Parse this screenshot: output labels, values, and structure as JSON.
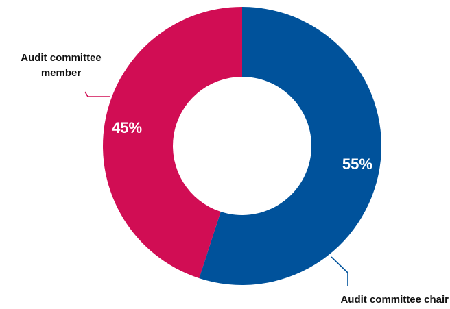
{
  "chart_data": {
    "type": "pie",
    "donut": true,
    "title": "",
    "slices": [
      {
        "label": "Audit committee chair",
        "value": 55,
        "value_label": "55%",
        "color": "#00529b"
      },
      {
        "label": "Audit committee member",
        "value": 45,
        "value_label": "45%",
        "color": "#d10d54"
      }
    ],
    "label_lines": [
      {
        "label": "Audit committee chair",
        "lines": [
          "Audit committee chair"
        ]
      },
      {
        "label": "Audit committee member",
        "lines": [
          "Audit committee",
          "member"
        ]
      }
    ],
    "start_angle": "12 o'clock",
    "direction": "clockwise"
  }
}
